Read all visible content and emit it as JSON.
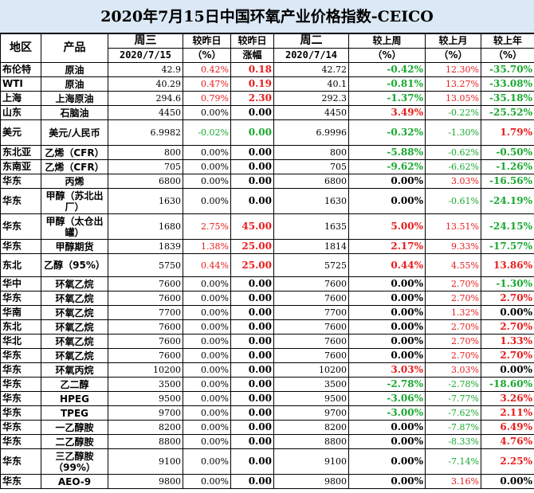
{
  "title": "2020年7月15日中国环氧产业价格指数-CEICO",
  "headers": {
    "region": "地区",
    "product": "产品",
    "wed": "周三",
    "wed_date": "2020/7/15",
    "cmp_prev": "较昨日",
    "cmp_prev_unit": "（%）",
    "cmp_prev2": "较昨日",
    "cmp_prev2_sub": "涨幅",
    "tue": "周二",
    "tue_date": "2020/7/14",
    "week": "较上周",
    "week_unit": "（%）",
    "month": "较上月",
    "month_unit": "（%）",
    "year": "较上年",
    "year_unit": "（%）"
  },
  "colors": {
    "red": "#e81c1c",
    "green": "#18a82f",
    "black": "#000000",
    "title_bg": "#dbe8f5"
  },
  "rows": [
    {
      "region": "布伦特",
      "product": "原油",
      "wed": "42.9",
      "d_pct": "0.42%",
      "d_pct_c": "red",
      "d_abs": "0.18",
      "d_abs_c": "red",
      "tue": "42.72",
      "week": "-0.42%",
      "week_c": "green",
      "month": "12.30%",
      "month_c": "red",
      "year": "-35.70%",
      "year_c": "green",
      "h": ""
    },
    {
      "region": "WTI",
      "product": "原油",
      "wed": "40.29",
      "d_pct": "0.47%",
      "d_pct_c": "red",
      "d_abs": "0.19",
      "d_abs_c": "red",
      "tue": "40.1",
      "week": "-0.81%",
      "week_c": "green",
      "month": "13.27%",
      "month_c": "red",
      "year": "-33.08%",
      "year_c": "green",
      "h": ""
    },
    {
      "region": "上海",
      "product": "上海原油",
      "wed": "294.6",
      "d_pct": "0.79%",
      "d_pct_c": "red",
      "d_abs": "2.30",
      "d_abs_c": "red",
      "tue": "292.3",
      "week": "-1.37%",
      "week_c": "green",
      "month": "13.05%",
      "month_c": "red",
      "year": "-35.18%",
      "year_c": "green",
      "h": ""
    },
    {
      "region": "山东",
      "product": "石脑油",
      "wed": "4450",
      "d_pct": "0.00%",
      "d_pct_c": "black",
      "d_abs": "0.00",
      "d_abs_c": "black",
      "tue": "4450",
      "week": "3.49%",
      "week_c": "red",
      "month": "-0.22%",
      "month_c": "green",
      "year": "-25.52%",
      "year_c": "green",
      "h": ""
    },
    {
      "region": "美元",
      "product": "美元/人民币",
      "wed": "6.9982",
      "d_pct": "-0.02%",
      "d_pct_c": "green",
      "d_abs": "0.00",
      "d_abs_c": "green",
      "tue": "6.9996",
      "week": "-0.32%",
      "week_c": "green",
      "month": "-1.30%",
      "month_c": "green",
      "year": "1.79%",
      "year_c": "red",
      "h": "tall"
    },
    {
      "region": "东北亚",
      "product": "乙烯（CFR）",
      "wed": "800",
      "d_pct": "0.00%",
      "d_pct_c": "black",
      "d_abs": "0.00",
      "d_abs_c": "black",
      "tue": "800",
      "week": "-5.88%",
      "week_c": "green",
      "month": "-0.62%",
      "month_c": "green",
      "year": "-0.50%",
      "year_c": "green",
      "h": ""
    },
    {
      "region": "东南亚",
      "product": "乙烯（CFR）",
      "wed": "705",
      "d_pct": "0.00%",
      "d_pct_c": "black",
      "d_abs": "0.00",
      "d_abs_c": "black",
      "tue": "705",
      "week": "-9.62%",
      "week_c": "green",
      "month": "-6.62%",
      "month_c": "green",
      "year": "-1.26%",
      "year_c": "green",
      "h": ""
    },
    {
      "region": "华东",
      "product": "丙烯",
      "wed": "6800",
      "d_pct": "0.00%",
      "d_pct_c": "black",
      "d_abs": "0.00",
      "d_abs_c": "black",
      "tue": "6800",
      "week": "0.00%",
      "week_c": "black",
      "month": "3.03%",
      "month_c": "red",
      "year": "-16.56%",
      "year_c": "green",
      "h": ""
    },
    {
      "region": "华东",
      "product": "甲醇（苏北出厂）",
      "wed": "1630",
      "d_pct": "0.00%",
      "d_pct_c": "black",
      "d_abs": "0.00",
      "d_abs_c": "black",
      "tue": "1630",
      "week": "0.00%",
      "week_c": "black",
      "month": "-0.61%",
      "month_c": "green",
      "year": "-24.19%",
      "year_c": "green",
      "h": "tall"
    },
    {
      "region": "华东",
      "product": "甲醇（太仓出罐）",
      "wed": "1680",
      "d_pct": "2.75%",
      "d_pct_c": "red",
      "d_abs": "45.00",
      "d_abs_c": "red",
      "tue": "1635",
      "week": "5.00%",
      "week_c": "red",
      "month": "13.51%",
      "month_c": "red",
      "year": "-24.15%",
      "year_c": "green",
      "h": "tall"
    },
    {
      "region": "华东",
      "product": "甲醇期货",
      "wed": "1839",
      "d_pct": "1.38%",
      "d_pct_c": "red",
      "d_abs": "25.00",
      "d_abs_c": "red",
      "tue": "1814",
      "week": "2.17%",
      "week_c": "red",
      "month": "9.33%",
      "month_c": "red",
      "year": "-17.57%",
      "year_c": "green",
      "h": ""
    },
    {
      "region": "东北",
      "product": "乙醇（95%）",
      "wed": "5750",
      "d_pct": "0.44%",
      "d_pct_c": "red",
      "d_abs": "25.00",
      "d_abs_c": "red",
      "tue": "5725",
      "week": "0.44%",
      "week_c": "red",
      "month": "4.55%",
      "month_c": "red",
      "year": "13.86%",
      "year_c": "red",
      "h": "mid"
    },
    {
      "region": "华中",
      "product": "环氧乙烷",
      "wed": "7600",
      "d_pct": "0.00%",
      "d_pct_c": "black",
      "d_abs": "0.00",
      "d_abs_c": "black",
      "tue": "7600",
      "week": "0.00%",
      "week_c": "black",
      "month": "2.70%",
      "month_c": "red",
      "year": "-1.30%",
      "year_c": "green",
      "h": ""
    },
    {
      "region": "华东",
      "product": "环氧乙烷",
      "wed": "7600",
      "d_pct": "0.00%",
      "d_pct_c": "black",
      "d_abs": "0.00",
      "d_abs_c": "black",
      "tue": "7600",
      "week": "0.00%",
      "week_c": "black",
      "month": "2.70%",
      "month_c": "red",
      "year": "2.70%",
      "year_c": "red",
      "h": ""
    },
    {
      "region": "华南",
      "product": "环氧乙烷",
      "wed": "7700",
      "d_pct": "0.00%",
      "d_pct_c": "black",
      "d_abs": "0.00",
      "d_abs_c": "black",
      "tue": "7700",
      "week": "0.00%",
      "week_c": "black",
      "month": "1.32%",
      "month_c": "red",
      "year": "0.00%",
      "year_c": "black",
      "h": ""
    },
    {
      "region": "东北",
      "product": "环氧乙烷",
      "wed": "7600",
      "d_pct": "0.00%",
      "d_pct_c": "black",
      "d_abs": "0.00",
      "d_abs_c": "black",
      "tue": "7600",
      "week": "0.00%",
      "week_c": "black",
      "month": "2.70%",
      "month_c": "red",
      "year": "2.70%",
      "year_c": "red",
      "h": ""
    },
    {
      "region": "华北",
      "product": "环氧乙烷",
      "wed": "7600",
      "d_pct": "0.00%",
      "d_pct_c": "black",
      "d_abs": "0.00",
      "d_abs_c": "black",
      "tue": "7600",
      "week": "0.00%",
      "week_c": "black",
      "month": "2.70%",
      "month_c": "red",
      "year": "1.33%",
      "year_c": "red",
      "h": ""
    },
    {
      "region": "华东",
      "product": "环氧乙烷",
      "wed": "7600",
      "d_pct": "0.00%",
      "d_pct_c": "black",
      "d_abs": "0.00",
      "d_abs_c": "black",
      "tue": "7600",
      "week": "0.00%",
      "week_c": "black",
      "month": "2.70%",
      "month_c": "red",
      "year": "2.70%",
      "year_c": "red",
      "h": ""
    },
    {
      "region": "华东",
      "product": "环氧丙烷",
      "wed": "10200",
      "d_pct": "0.00%",
      "d_pct_c": "black",
      "d_abs": "0.00",
      "d_abs_c": "black",
      "tue": "10200",
      "week": "3.03%",
      "week_c": "red",
      "month": "3.03%",
      "month_c": "red",
      "year": "0.00%",
      "year_c": "black",
      "h": ""
    },
    {
      "region": "华东",
      "product": "乙二醇",
      "wed": "3500",
      "d_pct": "0.00%",
      "d_pct_c": "black",
      "d_abs": "0.00",
      "d_abs_c": "black",
      "tue": "3500",
      "week": "-2.78%",
      "week_c": "green",
      "month": "-2.78%",
      "month_c": "green",
      "year": "-18.60%",
      "year_c": "green",
      "h": ""
    },
    {
      "region": "华东",
      "product": "HPEG",
      "wed": "9500",
      "d_pct": "0.00%",
      "d_pct_c": "black",
      "d_abs": "0.00",
      "d_abs_c": "black",
      "tue": "9500",
      "week": "-3.06%",
      "week_c": "green",
      "month": "-7.77%",
      "month_c": "green",
      "year": "3.26%",
      "year_c": "red",
      "h": ""
    },
    {
      "region": "华东",
      "product": "TPEG",
      "wed": "9700",
      "d_pct": "0.00%",
      "d_pct_c": "black",
      "d_abs": "0.00",
      "d_abs_c": "black",
      "tue": "9700",
      "week": "-3.00%",
      "week_c": "green",
      "month": "-7.62%",
      "month_c": "green",
      "year": "2.11%",
      "year_c": "red",
      "h": ""
    },
    {
      "region": "华东",
      "product": "一乙醇胺",
      "wed": "8200",
      "d_pct": "0.00%",
      "d_pct_c": "black",
      "d_abs": "0.00",
      "d_abs_c": "black",
      "tue": "8200",
      "week": "0.00%",
      "week_c": "black",
      "month": "-7.87%",
      "month_c": "green",
      "year": "6.49%",
      "year_c": "red",
      "h": ""
    },
    {
      "region": "华东",
      "product": "二乙醇胺",
      "wed": "8800",
      "d_pct": "0.00%",
      "d_pct_c": "black",
      "d_abs": "0.00",
      "d_abs_c": "black",
      "tue": "8800",
      "week": "0.00%",
      "week_c": "black",
      "month": "-8.33%",
      "month_c": "green",
      "year": "4.76%",
      "year_c": "red",
      "h": ""
    },
    {
      "region": "华东",
      "product": "三乙醇胺（99%）",
      "wed": "9100",
      "d_pct": "0.00%",
      "d_pct_c": "black",
      "d_abs": "0.00",
      "d_abs_c": "black",
      "tue": "9100",
      "week": "0.00%",
      "week_c": "black",
      "month": "-7.14%",
      "month_c": "green",
      "year": "2.25%",
      "year_c": "red",
      "h": "tall"
    },
    {
      "region": "华东",
      "product": "AEO-9",
      "wed": "9800",
      "d_pct": "0.00%",
      "d_pct_c": "black",
      "d_abs": "0.00",
      "d_abs_c": "black",
      "tue": "9800",
      "week": "0.00%",
      "week_c": "black",
      "month": "3.16%",
      "month_c": "red",
      "year": "0.00%",
      "year_c": "black",
      "h": ""
    }
  ]
}
